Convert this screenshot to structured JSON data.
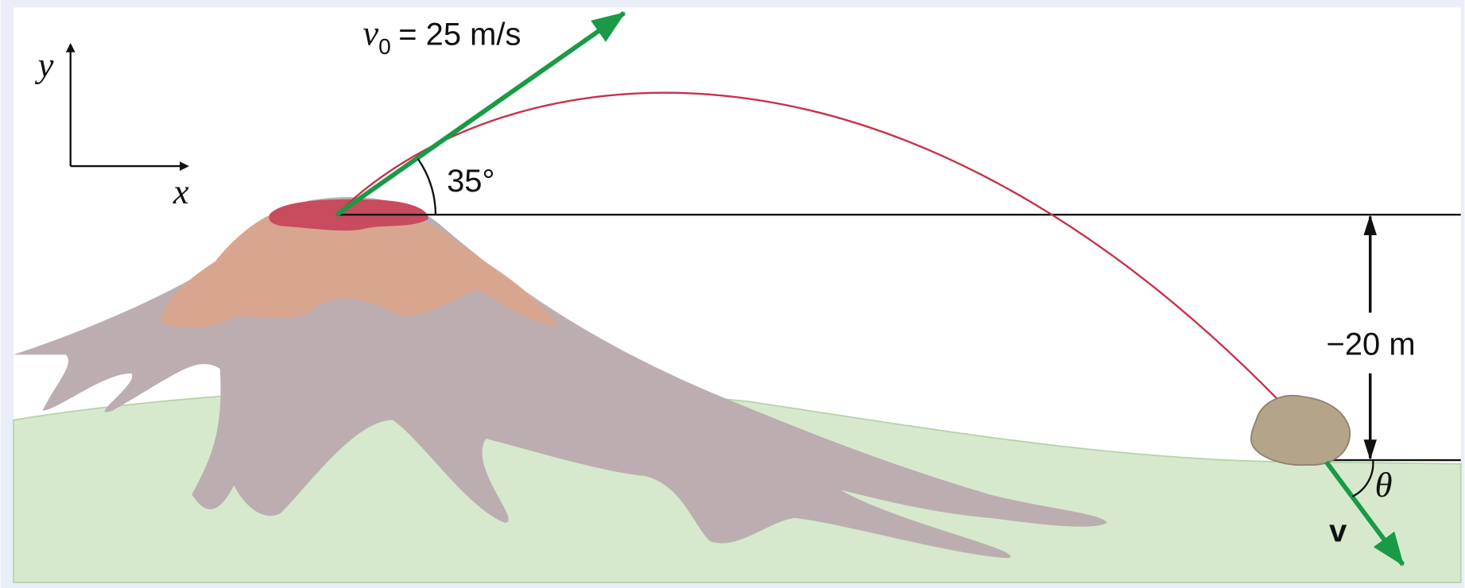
{
  "axes": {
    "y_label": "y",
    "x_label": "x"
  },
  "initial_velocity": {
    "symbol": "v",
    "subscript": "0",
    "equals": "= 25 m/s"
  },
  "launch_angle": "35°",
  "height_drop": "−20 m",
  "final_velocity": {
    "symbol": "v",
    "angle": "θ"
  }
}
